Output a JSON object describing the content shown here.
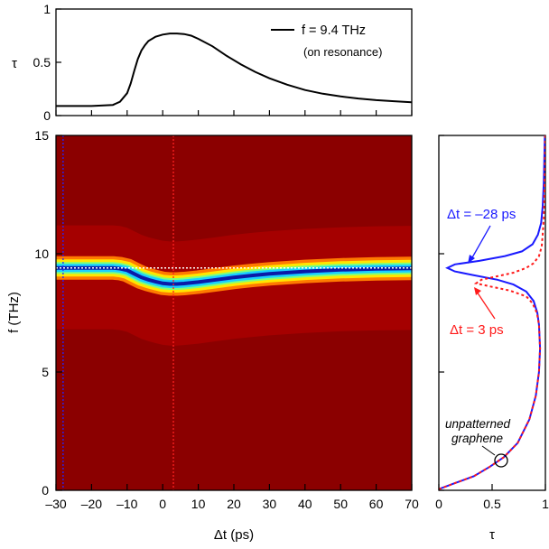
{
  "chart_data": [
    {
      "type": "line",
      "panel": "top",
      "xlim": [
        -30,
        70
      ],
      "ylim": [
        0,
        1
      ],
      "ylabel": "τ",
      "yticks": [
        "0",
        "0.5",
        "1"
      ],
      "grid": false,
      "legend": {
        "placement": "top-right",
        "label": "f = 9.4 THz",
        "sublabel": "(on resonance)"
      },
      "series": [
        {
          "name": "f = 9.4 THz",
          "color": "#000000",
          "x": [
            -30,
            -20,
            -14,
            -12,
            -10,
            -9,
            -8,
            -7,
            -6,
            -5,
            -4,
            -2,
            0,
            2,
            4,
            6,
            8,
            10,
            14,
            18,
            22,
            26,
            30,
            35,
            40,
            45,
            50,
            55,
            60,
            65,
            70
          ],
          "y": [
            0.09,
            0.09,
            0.1,
            0.13,
            0.21,
            0.3,
            0.42,
            0.53,
            0.61,
            0.66,
            0.7,
            0.74,
            0.76,
            0.77,
            0.77,
            0.765,
            0.75,
            0.72,
            0.65,
            0.56,
            0.48,
            0.41,
            0.35,
            0.29,
            0.24,
            0.205,
            0.18,
            0.16,
            0.145,
            0.135,
            0.125
          ]
        }
      ]
    },
    {
      "type": "heatmap",
      "panel": "main",
      "xlabel": "Δt (ps)",
      "ylabel": "f (THz)",
      "xlim": [
        -30,
        70
      ],
      "ylim": [
        0,
        15
      ],
      "xticks": [
        "–30",
        "–20",
        "–10",
        "0",
        "10",
        "20",
        "30",
        "40",
        "50",
        "60",
        "70"
      ],
      "yticks": [
        "0",
        "5",
        "10",
        "15"
      ],
      "colors": {
        "background": "#8b0000",
        "ridge": "#0a1aa8",
        "marker_blue": "#2222ff",
        "marker_red": "#ff2020",
        "resonance_line": "#ffffff"
      },
      "resonance_frequency": 9.4,
      "markers": [
        -28,
        3
      ],
      "resonance_dip": {
        "x": [
          -30,
          -14,
          -12,
          -10,
          -8,
          -6,
          -4,
          -2,
          0,
          2,
          4,
          6,
          10,
          15,
          20,
          25,
          30,
          40,
          50,
          60,
          70
        ],
        "y": [
          9.4,
          9.4,
          9.37,
          9.3,
          9.15,
          9.0,
          8.9,
          8.82,
          8.75,
          8.72,
          8.72,
          8.74,
          8.8,
          8.9,
          9.0,
          9.08,
          9.15,
          9.25,
          9.32,
          9.36,
          9.38
        ]
      }
    },
    {
      "type": "line",
      "panel": "right",
      "xlabel": "τ",
      "xlim": [
        0,
        1
      ],
      "ylim": [
        0,
        15
      ],
      "xticks": [
        "0",
        "0.5",
        "1"
      ],
      "grid": false,
      "annotations": [
        "unpatterned",
        "graphene"
      ],
      "series": [
        {
          "name": "Δt = –28 ps",
          "color": "#1a1aff",
          "f": [
            0.05,
            0.3,
            0.6,
            1.0,
            1.4,
            2.0,
            3.0,
            4.0,
            5.0,
            6.0,
            7.0,
            7.5,
            8.0,
            8.4,
            8.7,
            8.9,
            9.1,
            9.25,
            9.4,
            9.55,
            9.7,
            9.9,
            10.1,
            10.4,
            10.8,
            11.3,
            12.0,
            13.0,
            14.0,
            15.0
          ],
          "tau": [
            0.0,
            0.15,
            0.33,
            0.48,
            0.61,
            0.74,
            0.85,
            0.91,
            0.94,
            0.95,
            0.94,
            0.925,
            0.89,
            0.82,
            0.7,
            0.55,
            0.32,
            0.15,
            0.08,
            0.15,
            0.38,
            0.62,
            0.78,
            0.88,
            0.93,
            0.96,
            0.975,
            0.985,
            0.99,
            0.995
          ]
        },
        {
          "name": "Δt = 3 ps",
          "color": "#ff1a1a",
          "f": [
            0.05,
            0.3,
            0.6,
            1.0,
            1.4,
            2.0,
            3.0,
            4.0,
            5.0,
            6.0,
            7.0,
            7.5,
            7.9,
            8.2,
            8.45,
            8.6,
            8.75,
            8.9,
            9.05,
            9.2,
            9.4,
            9.6,
            9.9,
            10.3,
            10.8,
            11.5,
            12.5,
            13.5,
            15.0
          ],
          "tau": [
            0.0,
            0.15,
            0.33,
            0.48,
            0.61,
            0.74,
            0.85,
            0.91,
            0.94,
            0.95,
            0.94,
            0.92,
            0.88,
            0.82,
            0.66,
            0.5,
            0.35,
            0.4,
            0.55,
            0.7,
            0.82,
            0.89,
            0.94,
            0.965,
            0.975,
            0.985,
            0.99,
            0.995,
            0.998
          ]
        }
      ]
    }
  ]
}
